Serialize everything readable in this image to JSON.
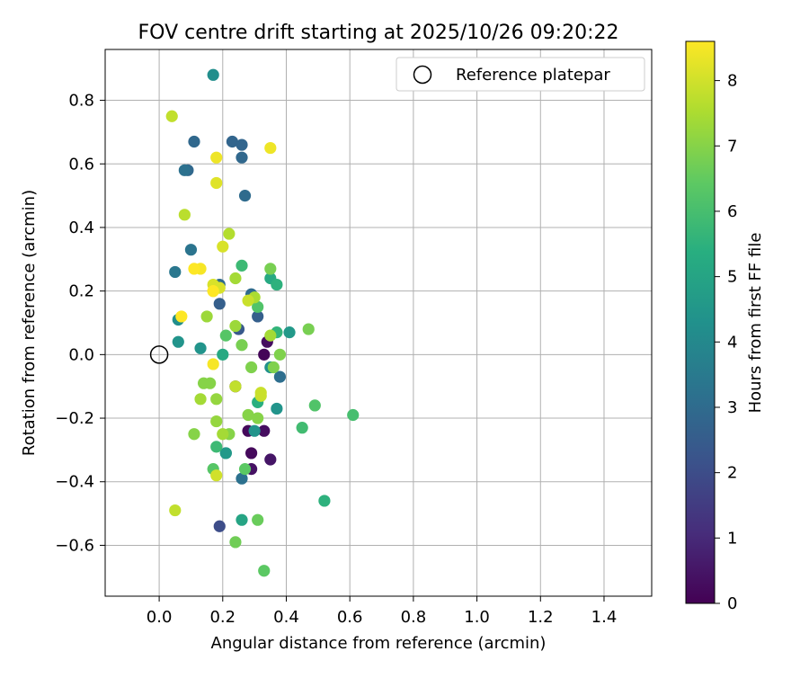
{
  "chart_data": {
    "type": "scatter",
    "title": "FOV centre drift starting at 2025/10/26 09:20:22",
    "xlabel": "Angular distance from reference (arcmin)",
    "ylabel": "Rotation from reference (arcmin)",
    "xlim": [
      -0.17,
      1.55
    ],
    "ylim": [
      -0.76,
      0.96
    ],
    "xticks": [
      0.0,
      0.2,
      0.4,
      0.6,
      0.8,
      1.0,
      1.2,
      1.4
    ],
    "xtick_labels": [
      "0.0",
      "0.2",
      "0.4",
      "0.6",
      "0.8",
      "1.0",
      "1.2",
      "1.4"
    ],
    "yticks": [
      -0.6,
      -0.4,
      -0.2,
      0.0,
      0.2,
      0.4,
      0.6,
      0.8
    ],
    "ytick_labels": [
      "−0.6",
      "−0.4",
      "−0.2",
      "0.0",
      "0.2",
      "0.4",
      "0.6",
      "0.8"
    ],
    "grid": true,
    "legend": {
      "position": "top-right",
      "entries": [
        "Reference platepar"
      ]
    },
    "reference_point": {
      "x": 0.0,
      "y": 0.0
    },
    "colorbar": {
      "label": "Hours from first FF file",
      "colormap": "viridis",
      "range": [
        0,
        8.6
      ],
      "ticks": [
        0,
        1,
        2,
        3,
        4,
        5,
        6,
        7,
        8
      ],
      "tick_labels": [
        "0",
        "1",
        "2",
        "3",
        "4",
        "5",
        "6",
        "7",
        "8"
      ]
    },
    "points": [
      {
        "x": 0.33,
        "y": 0.0,
        "h": 0.1
      },
      {
        "x": 0.34,
        "y": 0.04,
        "h": 0.3
      },
      {
        "x": 0.24,
        "y": -0.1,
        "h": 0.2
      },
      {
        "x": 0.28,
        "y": -0.24,
        "h": 0.2
      },
      {
        "x": 0.33,
        "y": -0.24,
        "h": 0.3
      },
      {
        "x": 0.29,
        "y": -0.31,
        "h": 0.2
      },
      {
        "x": 0.35,
        "y": -0.33,
        "h": 0.5
      },
      {
        "x": 0.29,
        "y": -0.36,
        "h": 0.4
      },
      {
        "x": 0.19,
        "y": -0.54,
        "h": 2.0
      },
      {
        "x": 0.25,
        "y": 0.08,
        "h": 2.4
      },
      {
        "x": 0.19,
        "y": 0.16,
        "h": 2.6
      },
      {
        "x": 0.31,
        "y": 0.12,
        "h": 2.6
      },
      {
        "x": 0.23,
        "y": 0.67,
        "h": 2.8
      },
      {
        "x": 0.26,
        "y": 0.66,
        "h": 2.8
      },
      {
        "x": 0.11,
        "y": 0.67,
        "h": 2.9
      },
      {
        "x": 0.09,
        "y": 0.58,
        "h": 2.9
      },
      {
        "x": 0.26,
        "y": 0.62,
        "h": 2.9
      },
      {
        "x": 0.27,
        "y": 0.5,
        "h": 3.0
      },
      {
        "x": 0.19,
        "y": 0.22,
        "h": 3.0
      },
      {
        "x": 0.29,
        "y": 0.19,
        "h": 3.0
      },
      {
        "x": 0.38,
        "y": -0.07,
        "h": 3.1
      },
      {
        "x": 0.26,
        "y": -0.39,
        "h": 3.2
      },
      {
        "x": 0.1,
        "y": 0.33,
        "h": 3.3
      },
      {
        "x": 0.05,
        "y": 0.26,
        "h": 3.4
      },
      {
        "x": 0.08,
        "y": 0.58,
        "h": 3.2
      },
      {
        "x": 0.06,
        "y": 0.11,
        "h": 4.2
      },
      {
        "x": 0.17,
        "y": 0.88,
        "h": 4.2
      },
      {
        "x": 0.35,
        "y": -0.04,
        "h": 4.3
      },
      {
        "x": 0.06,
        "y": 0.04,
        "h": 4.4
      },
      {
        "x": 0.13,
        "y": 0.02,
        "h": 4.4
      },
      {
        "x": 0.41,
        "y": 0.07,
        "h": 4.6
      },
      {
        "x": 0.37,
        "y": -0.17,
        "h": 4.4
      },
      {
        "x": 0.3,
        "y": -0.24,
        "h": 4.4
      },
      {
        "x": 0.21,
        "y": -0.31,
        "h": 4.6
      },
      {
        "x": 0.21,
        "y": -0.31,
        "h": 4.6
      },
      {
        "x": 0.26,
        "y": -0.52,
        "h": 5.0
      },
      {
        "x": 0.52,
        "y": -0.46,
        "h": 5.5
      },
      {
        "x": 0.35,
        "y": 0.24,
        "h": 5.2
      },
      {
        "x": 0.2,
        "y": 0.0,
        "h": 5.2
      },
      {
        "x": 0.31,
        "y": -0.15,
        "h": 5.4
      },
      {
        "x": 0.37,
        "y": 0.22,
        "h": 5.5
      },
      {
        "x": 0.37,
        "y": 0.07,
        "h": 5.6
      },
      {
        "x": 0.18,
        "y": -0.29,
        "h": 5.8
      },
      {
        "x": 0.26,
        "y": 0.28,
        "h": 5.8
      },
      {
        "x": 0.61,
        "y": -0.19,
        "h": 6.0
      },
      {
        "x": 0.45,
        "y": -0.23,
        "h": 5.9
      },
      {
        "x": 0.49,
        "y": -0.16,
        "h": 6.2
      },
      {
        "x": 0.31,
        "y": 0.15,
        "h": 6.2
      },
      {
        "x": 0.21,
        "y": 0.06,
        "h": 6.3
      },
      {
        "x": 0.17,
        "y": -0.36,
        "h": 6.3
      },
      {
        "x": 0.27,
        "y": -0.36,
        "h": 6.4
      },
      {
        "x": 0.33,
        "y": -0.68,
        "h": 6.4
      },
      {
        "x": 0.31,
        "y": -0.52,
        "h": 6.6
      },
      {
        "x": 0.24,
        "y": -0.59,
        "h": 6.7
      },
      {
        "x": 0.47,
        "y": 0.08,
        "h": 6.8
      },
      {
        "x": 0.35,
        "y": 0.27,
        "h": 6.8
      },
      {
        "x": 0.26,
        "y": 0.03,
        "h": 6.8
      },
      {
        "x": 0.29,
        "y": -0.04,
        "h": 6.9
      },
      {
        "x": 0.38,
        "y": 0.0,
        "h": 6.9
      },
      {
        "x": 0.36,
        "y": -0.04,
        "h": 6.9
      },
      {
        "x": 0.14,
        "y": -0.09,
        "h": 7.0
      },
      {
        "x": 0.16,
        "y": -0.09,
        "h": 7.0
      },
      {
        "x": 0.28,
        "y": -0.19,
        "h": 7.0
      },
      {
        "x": 0.31,
        "y": -0.2,
        "h": 7.0
      },
      {
        "x": 0.11,
        "y": -0.25,
        "h": 7.0
      },
      {
        "x": 0.22,
        "y": -0.25,
        "h": 7.0
      },
      {
        "x": 0.18,
        "y": -0.21,
        "h": 7.2
      },
      {
        "x": 0.18,
        "y": -0.14,
        "h": 7.2
      },
      {
        "x": 0.13,
        "y": -0.14,
        "h": 7.4
      },
      {
        "x": 0.2,
        "y": -0.25,
        "h": 7.4
      },
      {
        "x": 0.15,
        "y": 0.12,
        "h": 7.3
      },
      {
        "x": 0.24,
        "y": 0.24,
        "h": 7.4
      },
      {
        "x": 0.24,
        "y": 0.09,
        "h": 7.3
      },
      {
        "x": 0.3,
        "y": 0.18,
        "h": 7.5
      },
      {
        "x": 0.35,
        "y": 0.06,
        "h": 7.4
      },
      {
        "x": 0.22,
        "y": 0.38,
        "h": 7.6
      },
      {
        "x": 0.08,
        "y": 0.44,
        "h": 7.7
      },
      {
        "x": 0.04,
        "y": 0.75,
        "h": 7.8
      },
      {
        "x": 0.24,
        "y": -0.1,
        "h": 7.8
      },
      {
        "x": 0.28,
        "y": 0.17,
        "h": 7.9
      },
      {
        "x": 0.32,
        "y": -0.12,
        "h": 7.9
      },
      {
        "x": 0.32,
        "y": -0.13,
        "h": 7.9
      },
      {
        "x": 0.18,
        "y": -0.38,
        "h": 8.0
      },
      {
        "x": 0.05,
        "y": -0.49,
        "h": 7.8
      },
      {
        "x": 0.17,
        "y": 0.2,
        "h": 8.0
      },
      {
        "x": 0.17,
        "y": 0.22,
        "h": 8.1
      },
      {
        "x": 0.19,
        "y": 0.21,
        "h": 8.1
      },
      {
        "x": 0.2,
        "y": 0.34,
        "h": 8.1
      },
      {
        "x": 0.18,
        "y": 0.54,
        "h": 8.2
      },
      {
        "x": 0.18,
        "y": 0.62,
        "h": 8.4
      },
      {
        "x": 0.35,
        "y": 0.65,
        "h": 8.4
      },
      {
        "x": 0.17,
        "y": -0.03,
        "h": 8.5
      },
      {
        "x": 0.13,
        "y": 0.27,
        "h": 8.5
      },
      {
        "x": 0.11,
        "y": 0.27,
        "h": 8.6
      },
      {
        "x": 0.07,
        "y": 0.12,
        "h": 8.6
      },
      {
        "x": 0.17,
        "y": 0.2,
        "h": 8.6
      }
    ]
  }
}
